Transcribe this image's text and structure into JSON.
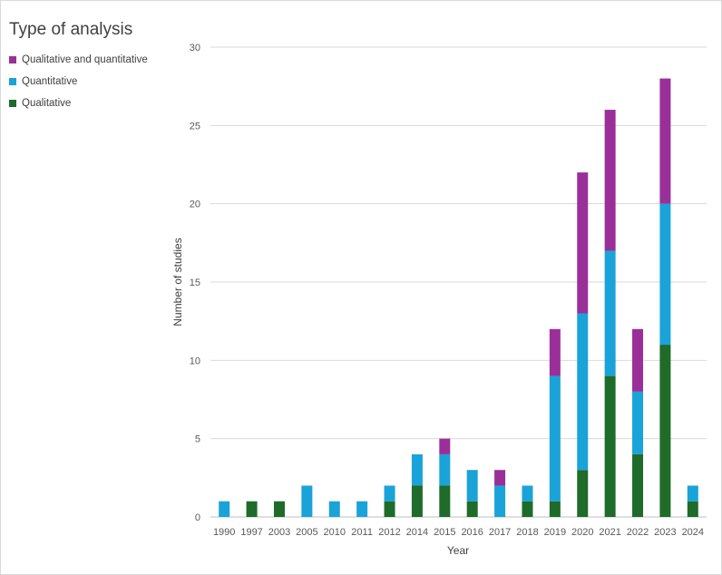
{
  "chart_data": {
    "type": "bar",
    "stacked": true,
    "legend_title": "Type of analysis",
    "xlabel": "Year",
    "ylabel": "Number of studies",
    "ylim": [
      0,
      30
    ],
    "yticks": [
      0,
      5,
      10,
      15,
      20,
      25,
      30
    ],
    "grid": true,
    "legend_position": "top-left",
    "categories": [
      "1990",
      "1997",
      "2003",
      "2005",
      "2010",
      "2011",
      "2012",
      "2014",
      "2015",
      "2016",
      "2017",
      "2018",
      "2019",
      "2020",
      "2021",
      "2022",
      "2023",
      "2024"
    ],
    "series": [
      {
        "name": "Qualitative",
        "color": "#1e6b2a",
        "values": [
          0,
          1,
          1,
          0,
          0,
          0,
          1,
          2,
          2,
          1,
          0,
          1,
          1,
          3,
          9,
          4,
          11,
          1
        ]
      },
      {
        "name": "Quantitative",
        "color": "#1aa3d8",
        "values": [
          1,
          0,
          0,
          2,
          1,
          1,
          1,
          2,
          2,
          2,
          2,
          1,
          8,
          10,
          8,
          4,
          9,
          1
        ]
      },
      {
        "name": "Qualitative and quantitative",
        "color": "#9a2f9a",
        "values": [
          0,
          0,
          0,
          0,
          0,
          0,
          0,
          0,
          1,
          0,
          1,
          0,
          3,
          9,
          9,
          4,
          8,
          0
        ]
      }
    ],
    "legend_order": [
      2,
      1,
      0
    ]
  }
}
